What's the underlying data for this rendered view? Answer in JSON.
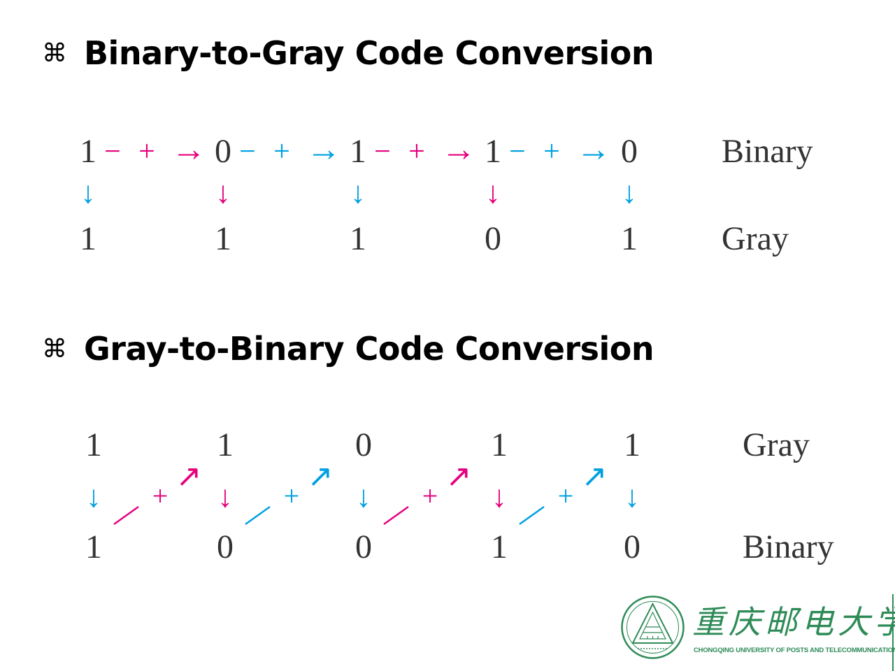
{
  "headings": {
    "bullet": "⌘",
    "b2g_title": "Binary-to-Gray Code Conversion",
    "g2b_title": "Gray-to-Binary Code Conversion"
  },
  "colors": {
    "pink": "#e6007e",
    "cyan": "#00a0e0",
    "text": "#333333",
    "logo_green": "#2e8b57"
  },
  "b2g": {
    "binary_digits": [
      "1",
      "0",
      "1",
      "1",
      "0"
    ],
    "gray_digits": [
      "1",
      "1",
      "1",
      "0",
      "1"
    ],
    "binary_label": "Binary",
    "gray_label": "Gray",
    "op_symbols": [
      "−",
      "+",
      "→"
    ],
    "op_colors": [
      "pink",
      "cyan",
      "pink",
      "cyan"
    ],
    "down_arrow": "↓",
    "down_arrow_colors": [
      "cyan",
      "pink",
      "cyan",
      "pink",
      "cyan"
    ]
  },
  "g2b": {
    "gray_digits": [
      "1",
      "1",
      "0",
      "1",
      "1"
    ],
    "binary_digits": [
      "1",
      "0",
      "0",
      "1",
      "0"
    ],
    "gray_label": "Gray",
    "binary_label": "Binary",
    "plus": "+",
    "diag_arrow": "↗",
    "diag_colors": [
      "pink",
      "cyan",
      "pink",
      "cyan"
    ],
    "down_arrow": "↓",
    "down_arrow_colors": [
      "cyan",
      "pink",
      "cyan",
      "pink",
      "cyan"
    ]
  },
  "logo": {
    "chinese_name": "重庆邮电大学",
    "english_name": "CHONGQING UNIVERSITY OF POSTS AND TELECOMMUNICATIONS",
    "seal_icon": "university-seal-icon"
  }
}
